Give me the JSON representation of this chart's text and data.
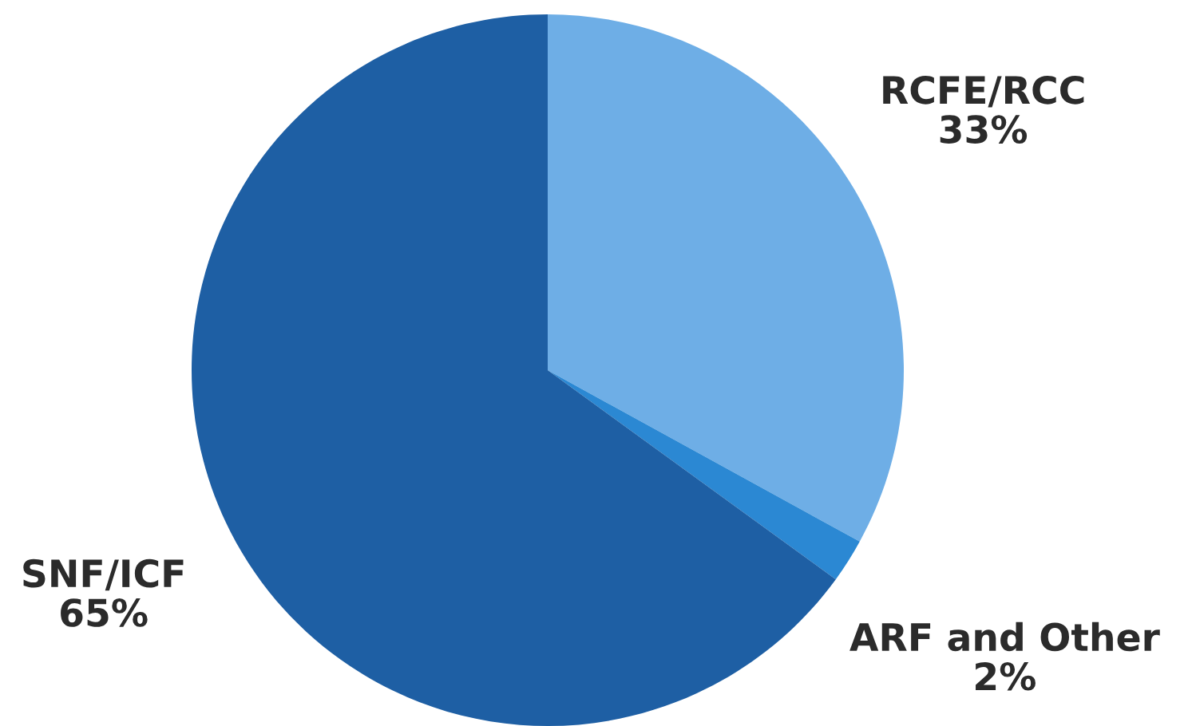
{
  "chart_data": {
    "type": "pie",
    "categories": [
      "RCFE/RCC",
      "ARF and Other",
      "SNF/ICF"
    ],
    "values": [
      33,
      2,
      65
    ],
    "value_labels": [
      "33%",
      "2%",
      "65%"
    ],
    "colors": [
      "#6eaee6",
      "#2b88d3",
      "#1e5fa4"
    ]
  }
}
